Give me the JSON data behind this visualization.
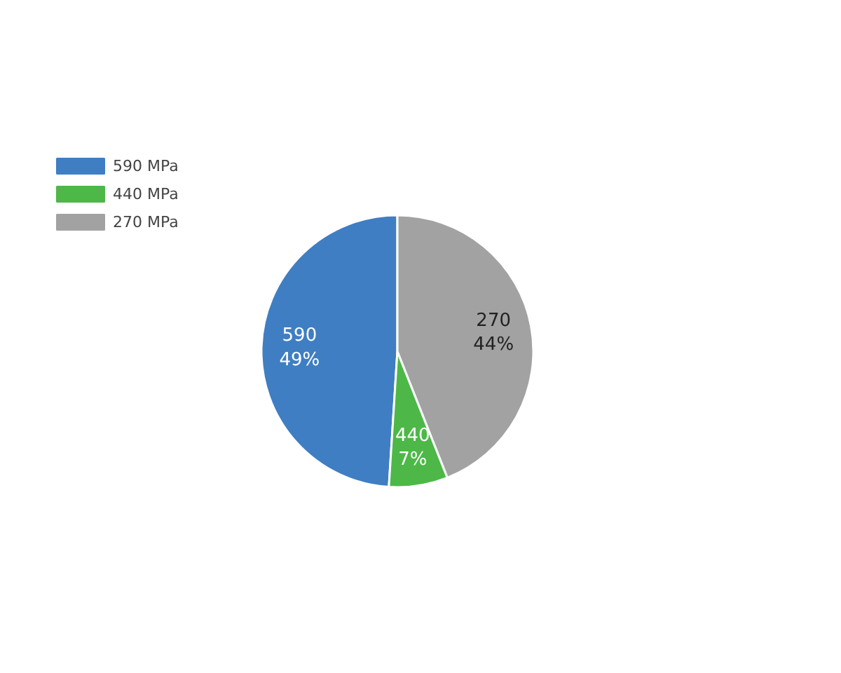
{
  "chart_data": {
    "type": "pie",
    "categories": [
      "590 MPa",
      "440 MPa",
      "270 MPa"
    ],
    "values": [
      49,
      7,
      44
    ],
    "colors": [
      "#3f7ec2",
      "#4db848",
      "#a2a2a2"
    ],
    "value_labels": [
      "590\n49%",
      "440\n7%",
      "270\n44%"
    ],
    "legend": "top left"
  }
}
